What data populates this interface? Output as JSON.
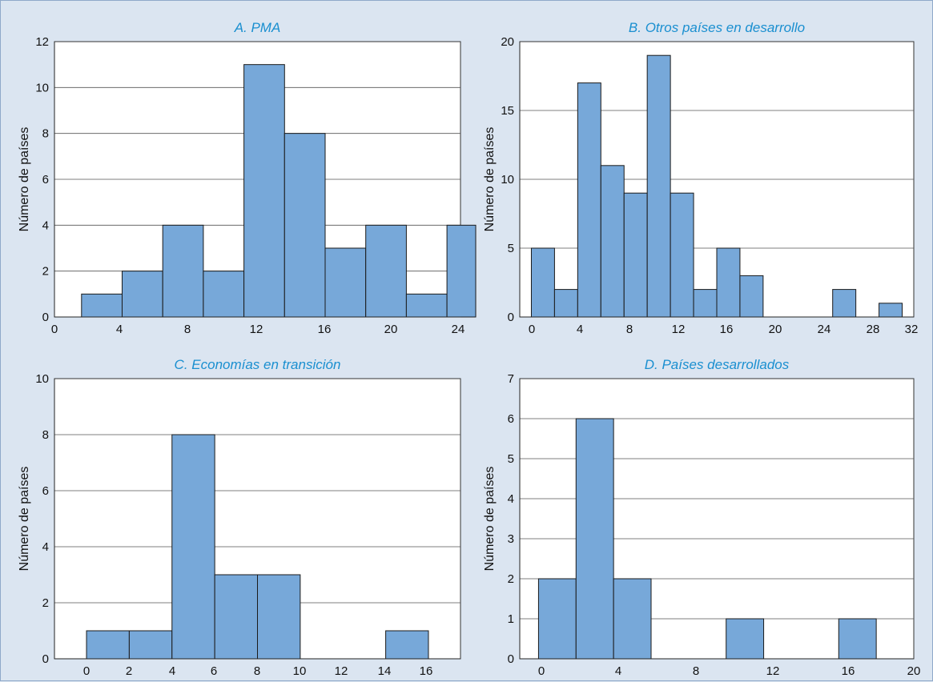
{
  "colors": {
    "background": "#dbe5f1",
    "bar": "#77a8d9",
    "title": "#1a8fd0"
  },
  "chart_data": [
    {
      "type": "bar",
      "title": "A. PMA",
      "xlabel": "",
      "ylabel": "Número de países",
      "xlim": [
        0,
        24
      ],
      "ylim": [
        0,
        12
      ],
      "xticks": [
        "0",
        "4",
        "8",
        "12",
        "16",
        "20",
        "24"
      ],
      "yticks": [
        "0",
        "2",
        "4",
        "6",
        "8",
        "10",
        "12"
      ],
      "bins": [
        {
          "x0": 1.6,
          "x1": 4.0,
          "value": 1
        },
        {
          "x0": 4.0,
          "x1": 6.4,
          "value": 2
        },
        {
          "x0": 6.4,
          "x1": 8.8,
          "value": 4
        },
        {
          "x0": 8.8,
          "x1": 11.2,
          "value": 2
        },
        {
          "x0": 11.2,
          "x1": 13.6,
          "value": 11
        },
        {
          "x0": 13.6,
          "x1": 16.0,
          "value": 8
        },
        {
          "x0": 16.0,
          "x1": 18.4,
          "value": 3
        },
        {
          "x0": 18.4,
          "x1": 20.8,
          "value": 4
        },
        {
          "x0": 20.8,
          "x1": 23.2,
          "value": 1
        },
        {
          "x0": 23.2,
          "x1": 25.6,
          "value": 4
        }
      ],
      "grid": "horizontal"
    },
    {
      "type": "bar",
      "title": "B. Otros países en desarrollo",
      "xlabel": "",
      "ylabel": "Número de países",
      "xlim": [
        -1,
        33
      ],
      "ylim": [
        0,
        20
      ],
      "xticks": [
        "0",
        "4",
        "8",
        "12",
        "16",
        "20",
        "24",
        "28",
        "32"
      ],
      "yticks": [
        "0",
        "5",
        "10",
        "15",
        "20"
      ],
      "bins": [
        {
          "x0": 0,
          "x1": 2,
          "value": 5
        },
        {
          "x0": 2,
          "x1": 4,
          "value": 2
        },
        {
          "x0": 4,
          "x1": 6,
          "value": 17
        },
        {
          "x0": 6,
          "x1": 8,
          "value": 11
        },
        {
          "x0": 8,
          "x1": 10,
          "value": 9
        },
        {
          "x0": 10,
          "x1": 12,
          "value": 19
        },
        {
          "x0": 12,
          "x1": 14,
          "value": 9
        },
        {
          "x0": 14,
          "x1": 16,
          "value": 2
        },
        {
          "x0": 16,
          "x1": 18,
          "value": 5
        },
        {
          "x0": 18,
          "x1": 20,
          "value": 3
        },
        {
          "x0": 26,
          "x1": 28,
          "value": 2
        },
        {
          "x0": 30,
          "x1": 32,
          "value": 1
        }
      ],
      "grid": "horizontal"
    },
    {
      "type": "bar",
      "title": "C. Economías en transición",
      "xlabel": "",
      "ylabel": "Número de países",
      "xlim": [
        -1.5,
        17.5
      ],
      "ylim": [
        0,
        10
      ],
      "xticks": [
        "0",
        "2",
        "4",
        "6",
        "8",
        "10",
        "12",
        "14",
        "16"
      ],
      "yticks": [
        "0",
        "2",
        "4",
        "6",
        "8",
        "10"
      ],
      "bins": [
        {
          "x0": 0,
          "x1": 2,
          "value": 1
        },
        {
          "x0": 2,
          "x1": 4,
          "value": 1
        },
        {
          "x0": 4,
          "x1": 6,
          "value": 8
        },
        {
          "x0": 6,
          "x1": 8,
          "value": 3
        },
        {
          "x0": 8,
          "x1": 10,
          "value": 3
        },
        {
          "x0": 14,
          "x1": 16,
          "value": 1
        }
      ],
      "grid": "horizontal"
    },
    {
      "type": "bar",
      "title": "D. Países desarrollados",
      "xlabel": "",
      "ylabel": "Número de países",
      "xlim": [
        -1,
        20
      ],
      "ylim": [
        0,
        7
      ],
      "xticks": [
        "0",
        "4",
        "8",
        "12",
        "16",
        "20"
      ],
      "yticks": [
        "0",
        "1",
        "2",
        "3",
        "4",
        "5",
        "6",
        "7"
      ],
      "bins": [
        {
          "x0": 0,
          "x1": 2,
          "value": 2
        },
        {
          "x0": 2,
          "x1": 4,
          "value": 6
        },
        {
          "x0": 4,
          "x1": 6,
          "value": 2
        },
        {
          "x0": 10,
          "x1": 12,
          "value": 1
        },
        {
          "x0": 16,
          "x1": 18,
          "value": 1
        }
      ],
      "grid": "horizontal"
    }
  ]
}
